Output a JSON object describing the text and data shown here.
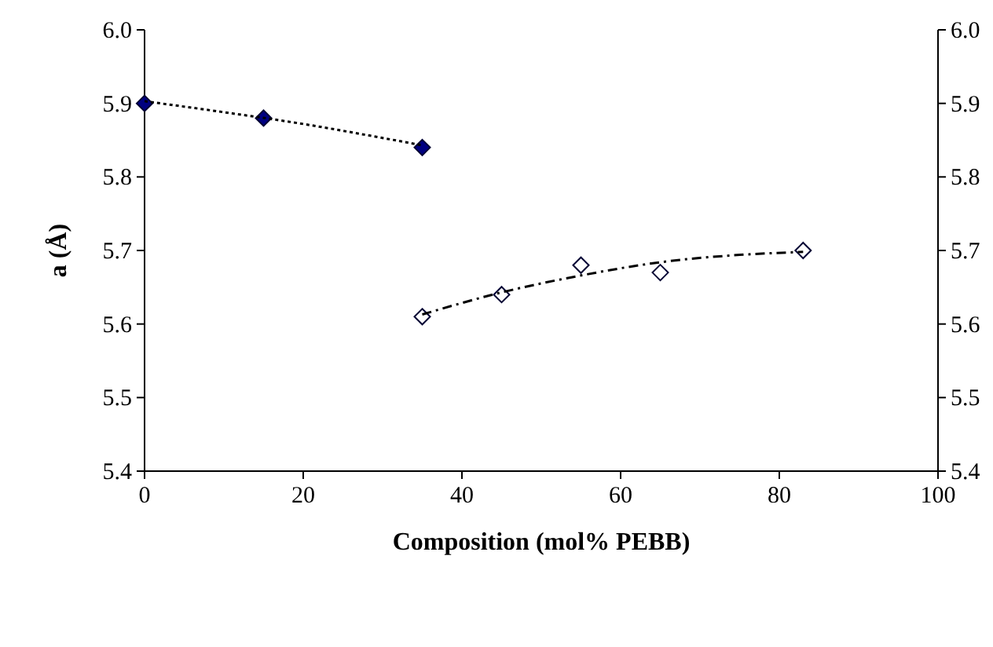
{
  "chart_data": {
    "type": "scatter",
    "xlabel": "Composition (mol% PEBB)",
    "ylabel": "a (Å)",
    "xlim": [
      0,
      100
    ],
    "xticks": [
      0,
      20,
      40,
      60,
      80,
      100
    ],
    "ylim": [
      5.4,
      6.0
    ],
    "yticks": [
      5.4,
      5.5,
      5.6,
      5.7,
      5.8,
      5.9,
      {
        "value": 6.0,
        "label": "6.0"
      }
    ],
    "y2lim": [
      5.4,
      6.0
    ],
    "y2ticks": [
      5.4,
      5.5,
      5.6,
      5.7,
      5.8,
      5.9,
      {
        "value": 6.0,
        "label": "6.0"
      }
    ],
    "marker": "diamond",
    "grid": false,
    "series": [
      {
        "color": "#000080",
        "x": [
          0,
          15,
          35
        ],
        "values": [
          5.9,
          5.88,
          5.84
        ]
      },
      {
        "color": "#ffffff",
        "x": [
          35,
          45,
          55,
          65,
          83
        ],
        "values": [
          5.61,
          5.64,
          5.68,
          5.67,
          5.7
        ]
      },
      {
        "type": "line",
        "color": "#000000",
        "line_style": "dotted",
        "marker": "none",
        "x": [
          0,
          10,
          20,
          30,
          35
        ],
        "values": [
          5.903,
          5.888,
          5.872,
          5.853,
          5.843
        ]
      },
      {
        "type": "line",
        "color": "#000000",
        "line_style": "dashed",
        "marker": "none",
        "x": [
          35,
          45,
          55,
          65,
          75,
          83
        ],
        "values": [
          5.613,
          5.643,
          5.666,
          5.684,
          5.694,
          5.698
        ]
      }
    ]
  }
}
